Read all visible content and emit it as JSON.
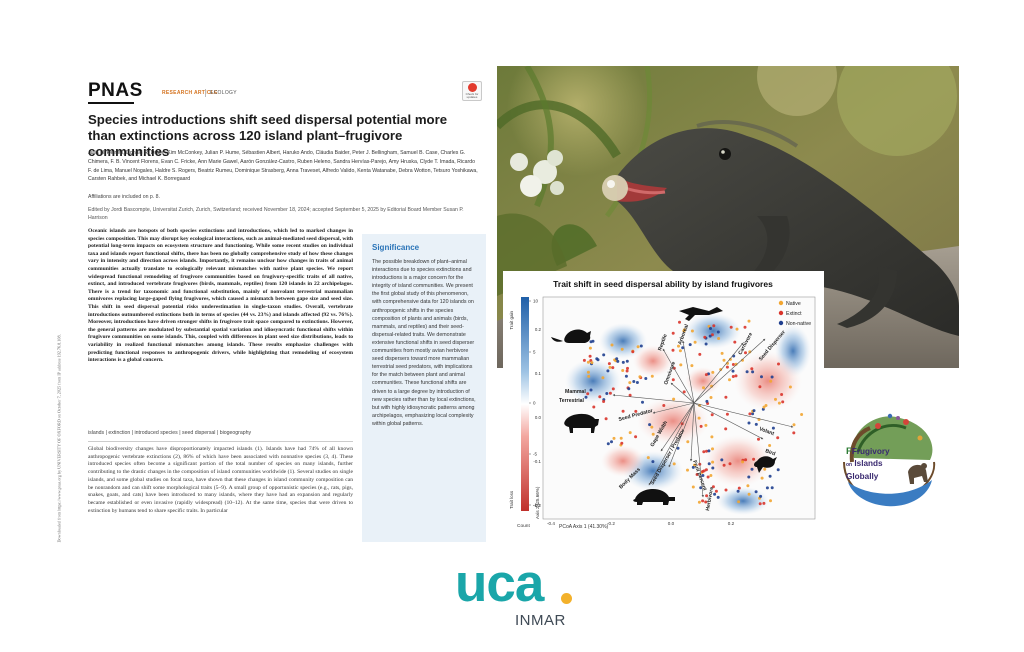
{
  "paper": {
    "side_note": "Downloaded from https://www.pnas.org by UNIVERSITY OF OXFORD on October 7, 2025 from IP address 192.76.8.108.",
    "brand": "PNAS",
    "article_type": "RESEARCH ARTICLE",
    "field": "ECOLOGY",
    "update_badge": "Check for updates",
    "title": "Species introductions shift seed dispersal potential more than extinctions across 120 island plant–frugivore communities",
    "authors": "Julia H. Heinen, Donald R. Drake, Kim McConkey, Julian P. Hume, Sébastien Albert, Haruko Ando, Cláudia Baider, Peter J. Bellingham, Samuel B. Case, Charles G. Chimera, F. B. Vincent Florens, Evan C. Fricke, Ann Marie Gawel, Aarón González-Castro, Ruben Heleno, Sandra Hervías-Parejo, Amy Hruska, Clyde T. Imada, Ricardo F. de Lima, Manuel Nogales, Haldre S. Rogers, Beatriz Rumeu, Dominique Strasberg, Anna Traveset, Alfredo Valido, Kenta Watanabe, Debra Wotton, Tetsuro Yoshikawa, Carsten Rahbek, and Michael K. Borregaard",
    "affiliations": "Affiliations are included on p. 8.",
    "edited": "Edited by Jordi Bascompte, Universitat Zurich, Zurich, Switzerland; received November 18, 2024; accepted September 5, 2025 by Editorial Board Member Susan P. Harrison",
    "abstract": "Oceanic islands are hotspots of both species extinctions and introductions, which led to marked changes in species composition. This may disrupt key ecological interactions, such as animal-mediated seed dispersal, with potential long-term impacts on ecosystem structure and functioning. While some recent studies on individual taxa and islands report functional shifts, there has been no globally comprehensive study of how these changes vary in intensity and direction across islands. Importantly, it remains unclear how changes in traits of animal communities actually translate to ecologically relevant mismatches with native plant species. We report widespread functional remodeling of frugivore communities based on frugivory-specific traits of all native, extinct, and introduced vertebrate frugivores (birds, mammals, reptiles) from 120 islands in 22 archipelagos. There is a trend for taxonomic and functional substitution, mainly of nonvolant terrestrial mammalian omnivores replacing large-gaped flying frugivores, which caused a mismatch between gape size and seed size. This shift in seed dispersal potential risks underestimation in single-taxon studies. Overall, vertebrate introductions outnumbered extinctions both in terms of species (44 vs. 23%) and islands affected (92 vs. 76%). Moreover, introductions have driven stronger shifts in frugivore trait space compared to extinctions. However, the general patterns are modulated by substantial spatial variation and idiosyncratic functional shifts within frugivore communities on some islands. This, coupled with differences in plant seed size distributions, leads to variability in realized functional mismatches among islands. These results emphasize challenges with predicting functional responses to anthropogenic drivers, while highlighting that remodeling of ecosystem interactions is a global concern.",
    "keywords": "islands | extinction | introduced species | seed dispersal | biogeography",
    "body": "Global biodiversity changes have disproportionately impacted islands (1). Islands have had 74% of all known anthropogenic vertebrate extinctions (2), 86% of which have been associated with nonnative species (3, 4). These introduced species often become a significant portion of the total number of species on many islands, further contributing to the drastic changes in the composition of island communities worldwide (1). Several studies on single islands, and some global studies on focal taxa, have shown that these changes in island community composition can be nonrandom and can shift some morphological traits (5–9). A small group of opportunistic species (e.g., rats, pigs, snakes, goats, and cats) have been introduced to many islands, where they have had an expansion and regularly became established or even invasive (rapidly widespread) (10–12). At the same time, species that were driven to extinction by humans tend to share specific traits. In particular",
    "significance_title": "Significance",
    "significance_text": "The possible breakdown of plant–animal interactions due to species extinctions and introductions is a major concern for the integrity of island communities. We present the first global study of this phenomenon, with comprehensive data for 120 islands on anthropogenic shifts in the species composition of plants and animals (birds, mammals, and reptiles) and their seed-dispersal-related traits. We demonstrate extensive functional shifts in seed disperser communities from mostly avian herbivore seed dispersers toward more mammalian terrestrial seed predators, with implications for the match between plant and animal communities. These functional shifts are driven to a large degree by introduction of new species rather than by local extinctions, but with highly idiosyncratic patterns among archipelagos, emphasizing local complexity within global patterns."
  },
  "figure": {
    "title": "Trait shift in seed dispersal ability by island frugivores",
    "legend": [
      {
        "label": "Native",
        "color": "#f2a531"
      },
      {
        "label": "Extinct",
        "color": "#d9342b"
      },
      {
        "label": "Non-native",
        "color": "#1f3f8f"
      }
    ],
    "colorbar_ticks": [
      "10",
      "5",
      "0",
      "-5",
      "-10"
    ],
    "colorbar_top_label": "Trait gain",
    "colorbar_bottom_label": "Trait loss",
    "colorbar_count_label": "Count",
    "x_axis_label": "PCoA Axis 1 (41.30%)",
    "y_axis_label": "Axis 2 (25.66%)",
    "x_ticks": [
      "-0.4",
      "-0.2",
      "0.0",
      "0.2"
    ],
    "y_ticks": [
      "0.2",
      "0.1",
      "0.0",
      "-0.1",
      "-0.2"
    ],
    "trait_labels": {
      "reptile": "Reptile",
      "arboreal": "Arboreal",
      "carnivore": "Carnivore",
      "seed_disperser": "Seed Disperser",
      "omnivore": "Omnivore",
      "mammal": "Mammal",
      "terrestrial": "Terrestrial",
      "volant": "Volant",
      "bird": "Bird",
      "seed_predator": "Seed Predator",
      "gape_width": "Gape Width",
      "seed_disperser_predator": "Seed Disperser / Predator",
      "fruit_percent": "Fruit percent",
      "body_mass": "Body Mass",
      "herbivore": "Herbivore"
    }
  },
  "logo_right": {
    "line1": "Frugivory",
    "line2_small": "on",
    "line2": "Islands",
    "line3": "Globally"
  },
  "uca_logo": {
    "word": "uca",
    "subtitle": "INMAR",
    "brand_color": "#1aa6a9",
    "dot_color": "#f3b12b"
  }
}
